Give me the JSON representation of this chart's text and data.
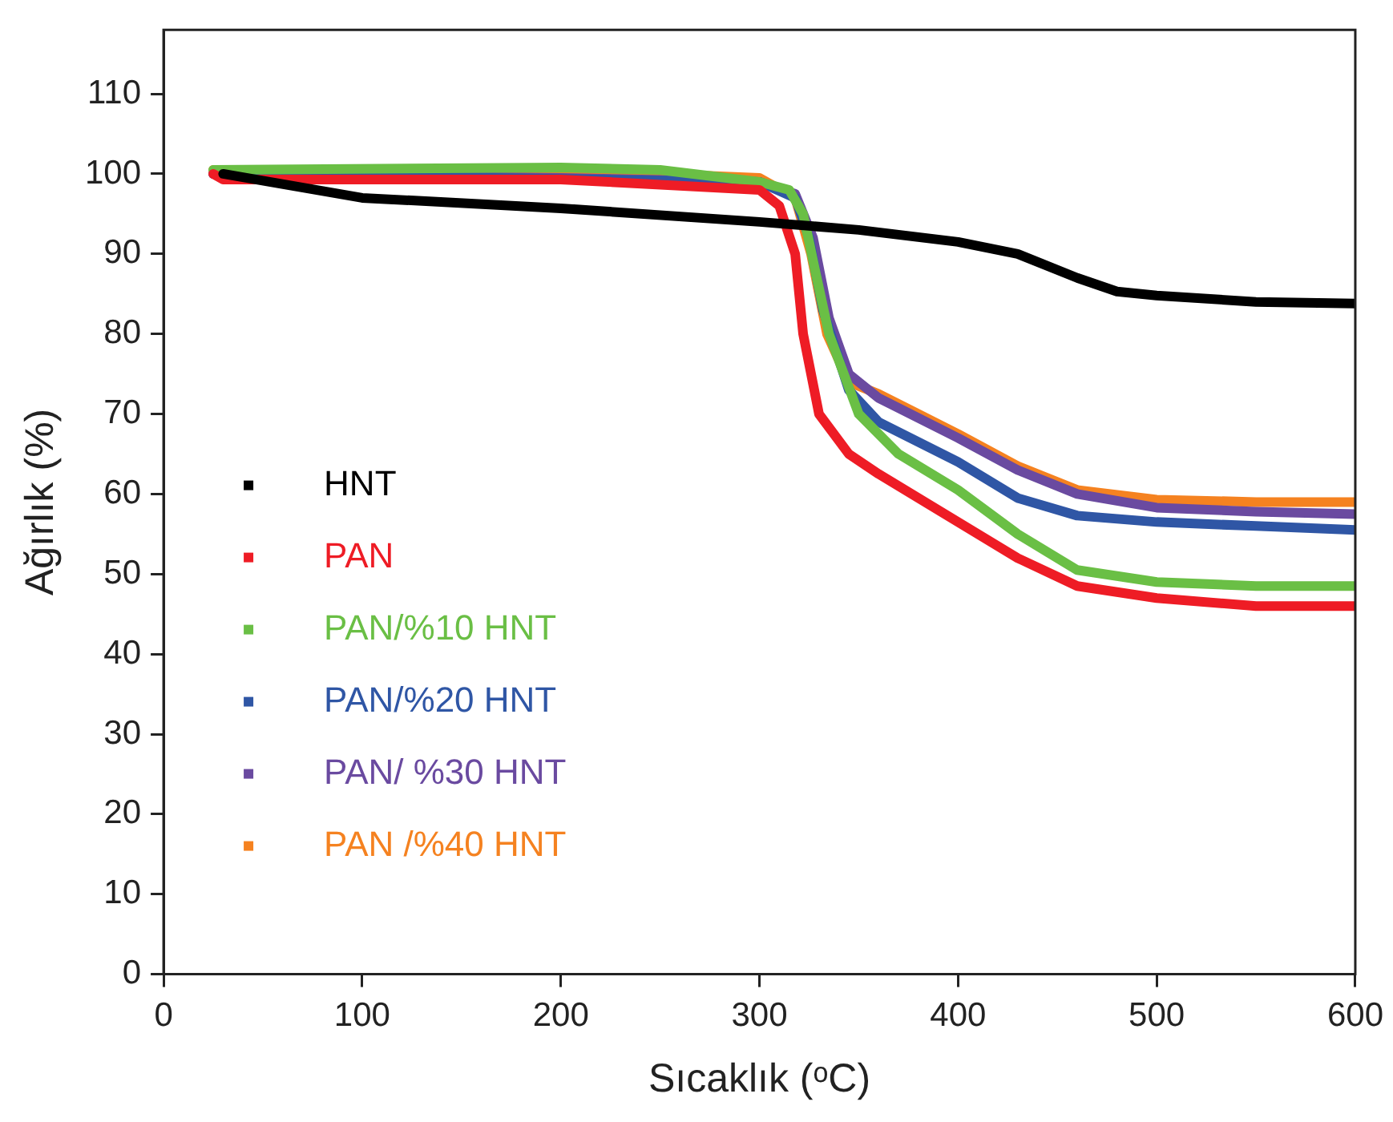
{
  "chart_data": {
    "type": "line",
    "xlabel": "Sıcaklık (ᵒC)",
    "ylabel": "Ağırlık (%)",
    "xlim": [
      0,
      600
    ],
    "xticks": [
      0,
      100,
      200,
      300,
      400,
      500,
      600
    ],
    "ylim": [
      0,
      118
    ],
    "yticks": [
      0,
      10,
      20,
      30,
      40,
      50,
      60,
      70,
      80,
      90,
      100,
      110
    ],
    "grid": false,
    "legend": "bottom left",
    "marker": "none",
    "line_style": "solid",
    "series": [
      {
        "name": "HNT",
        "color": "#000000",
        "x": [
          30,
          100,
          200,
          300,
          350,
          400,
          430,
          460,
          480,
          500,
          550,
          600
        ],
        "values": [
          100,
          97,
          95.7,
          94,
          93,
          91.5,
          90,
          87,
          85.3,
          84.8,
          84,
          83.8
        ]
      },
      {
        "name": "PAN",
        "color": "#ee1c25",
        "x": [
          25,
          30,
          200,
          300,
          310,
          318,
          322,
          330,
          345,
          360,
          400,
          430,
          460,
          500,
          550,
          600
        ],
        "values": [
          100,
          99.3,
          99.3,
          98,
          96,
          90,
          80,
          70,
          65,
          62.5,
          56.5,
          52,
          48.5,
          47,
          46,
          46
        ]
      },
      {
        "name": "PAN/%10 HNT",
        "color": "#6abf45",
        "x": [
          25,
          200,
          250,
          300,
          315,
          322,
          328,
          335,
          350,
          370,
          400,
          430,
          460,
          500,
          550,
          600
        ],
        "values": [
          100.5,
          100.8,
          100.5,
          99,
          98,
          95,
          88,
          80,
          70,
          65,
          60.5,
          55,
          50.5,
          49,
          48.5,
          48.5
        ]
      },
      {
        "name": "PAN/%20 HNT",
        "color": "#2f56a5",
        "x": [
          25,
          300,
          318,
          325,
          332,
          345,
          360,
          400,
          430,
          460,
          500,
          550,
          600
        ],
        "values": [
          100,
          99,
          97,
          92,
          83,
          73,
          69,
          64,
          59.5,
          57.3,
          56.5,
          56,
          55.5
        ]
      },
      {
        "name": "PAN/ %30 HNT",
        "color": "#6a4aa0",
        "x": [
          25,
          200,
          300,
          318,
          327,
          335,
          345,
          360,
          400,
          430,
          460,
          500,
          550,
          600
        ],
        "values": [
          100,
          99.5,
          99,
          97.5,
          92,
          82,
          75,
          72,
          67,
          63,
          60,
          58.3,
          57.8,
          57.5
        ]
      },
      {
        "name": "PAN /%40 HNT",
        "color": "#f58220",
        "x": [
          25,
          200,
          300,
          318,
          326,
          334,
          345,
          360,
          400,
          430,
          460,
          500,
          550,
          600
        ],
        "values": [
          100.5,
          100.5,
          99.5,
          97,
          90,
          80,
          74,
          72.5,
          67.5,
          63.5,
          60.5,
          59.3,
          59,
          59
        ]
      }
    ]
  }
}
